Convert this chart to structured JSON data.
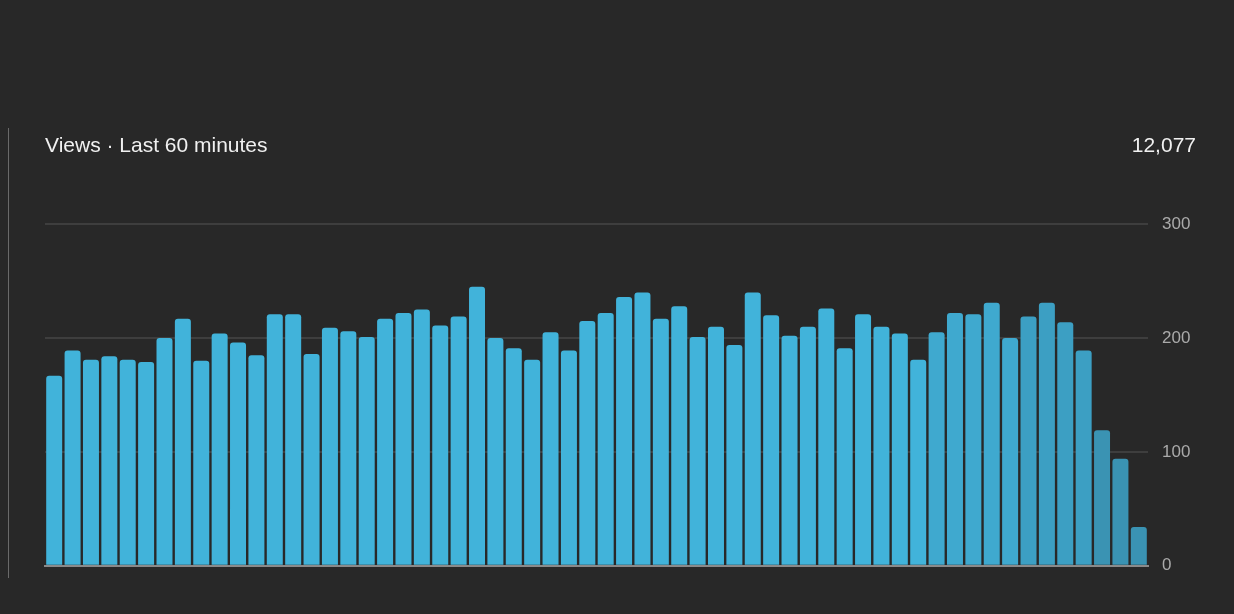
{
  "chart_data": {
    "type": "bar",
    "title": "Views · Last 60 minutes",
    "annotations": [
      "12,077"
    ],
    "categories": [
      null,
      null,
      null,
      null,
      null,
      null,
      null,
      null,
      null,
      null,
      null,
      null,
      null,
      null,
      null,
      null,
      null,
      null,
      null,
      null,
      null,
      null,
      null,
      null,
      null,
      null,
      null,
      null,
      null,
      null,
      null,
      null,
      null,
      null,
      null,
      null,
      null,
      null,
      null,
      null,
      null,
      null,
      null,
      null,
      null,
      null,
      null,
      null,
      null,
      null,
      null,
      null,
      null,
      null,
      null,
      null,
      null,
      null,
      null,
      null
    ],
    "values": [
      167,
      189,
      181,
      184,
      181,
      179,
      200,
      217,
      180,
      204,
      196,
      185,
      221,
      221,
      186,
      209,
      206,
      201,
      217,
      222,
      225,
      211,
      219,
      245,
      200,
      191,
      181,
      205,
      189,
      215,
      222,
      236,
      240,
      217,
      228,
      201,
      210,
      194,
      240,
      220,
      202,
      210,
      226,
      191,
      221,
      210,
      204,
      181,
      205,
      222,
      221,
      231,
      200,
      219,
      231,
      214,
      189,
      119,
      94,
      34
    ],
    "colors": [
      "#41b3da",
      "#41b3da",
      "#41b3da",
      "#41b3da",
      "#41b3da",
      "#41b3da",
      "#41b3da",
      "#41b3da",
      "#41b3da",
      "#41b3da",
      "#41b3da",
      "#41b3da",
      "#41b3da",
      "#41b3da",
      "#41b3da",
      "#41b3da",
      "#41b3da",
      "#41b3da",
      "#41b3da",
      "#41b3da",
      "#41b3da",
      "#41b3da",
      "#41b3da",
      "#41b3da",
      "#41b3da",
      "#41b3da",
      "#41b3da",
      "#41b3da",
      "#41b3da",
      "#41b3da",
      "#41b3da",
      "#41b3da",
      "#41b3da",
      "#41b3da",
      "#41b3da",
      "#41b3da",
      "#41b3da",
      "#41b3da",
      "#41b3da",
      "#41b3da",
      "#41b3da",
      "#41b3da",
      "#41b3da",
      "#41b3da",
      "#41b3da",
      "#41b3da",
      "#41b3da",
      "#41b3da",
      "#3fa9cf",
      "#3fa9cf",
      "#3fa9cf",
      "#3fa9cf",
      "#3fa9cf",
      "#3c9fc3",
      "#3c9fc3",
      "#3c9fc3",
      "#3c9fc3",
      "#3a93b3",
      "#3a93b3",
      "#3a93b3"
    ],
    "ylim": [
      0,
      300
    ],
    "yticks": [
      0,
      100,
      200,
      300
    ],
    "grid": "y",
    "tick_labels": "y"
  }
}
